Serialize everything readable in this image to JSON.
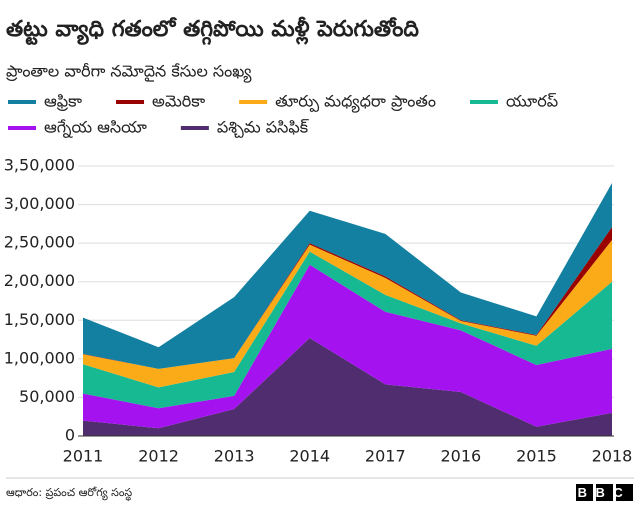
{
  "chart_data": {
    "type": "stacked_area",
    "title": "తట్టు వ్యాధి గతంలో తగ్గిపోయి మళ్లీ పెరుగుతోంది",
    "subtitle": "ప్రాంతాల వారీగా నమోదైన కేసుల సంఖ్య",
    "categories": [
      "2011",
      "2012",
      "2013",
      "2014",
      "2017",
      "2016",
      "2015",
      "2018"
    ],
    "series": [
      {
        "name": "ఆఫ్రికా",
        "color": "#1380a1",
        "values": [
          47000,
          28000,
          79000,
          42000,
          55000,
          36000,
          24000,
          57000
        ]
      },
      {
        "name": "అమెరికా",
        "color": "#990000",
        "values": [
          500,
          0,
          0,
          2000,
          2000,
          1000,
          1000,
          17000
        ]
      },
      {
        "name": "తూర్పు మధ్యధరా ప్రాంతం",
        "color": "#fcab18",
        "values": [
          13000,
          24000,
          18000,
          9000,
          22000,
          3000,
          13000,
          54000
        ]
      },
      {
        "name": "యూరప్",
        "color": "#16b991",
        "values": [
          38000,
          27000,
          31000,
          17000,
          22000,
          9000,
          25000,
          87000
        ]
      },
      {
        "name": "ఆగ్నేయ ఆసియా",
        "color": "#a412f0",
        "values": [
          35000,
          26000,
          17000,
          95000,
          94000,
          80000,
          80000,
          83000
        ]
      },
      {
        "name": "పశ్చిమ పసిఫిక్",
        "color": "#4f2d6e",
        "values": [
          20000,
          10000,
          35000,
          127000,
          67000,
          57000,
          12000,
          30000
        ]
      }
    ],
    "ylim": [
      0,
      350000
    ],
    "yticks": [
      0,
      {
        "value": 50000,
        "label": "50,000"
      },
      {
        "value": 100000,
        "label": "1,00,000"
      },
      {
        "value": 150000,
        "label": "1,50,000"
      },
      {
        "value": 200000,
        "label": "2,00,000"
      },
      {
        "value": 250000,
        "label": "2,50,000"
      },
      {
        "value": 300000,
        "label": "3,00,000"
      },
      {
        "value": 350000,
        "label": "3,50,000"
      }
    ],
    "grid": true,
    "source": "ఆధారం: ప్రపంచ ఆరోగ్య సంస్థ",
    "logo": "BBC"
  }
}
